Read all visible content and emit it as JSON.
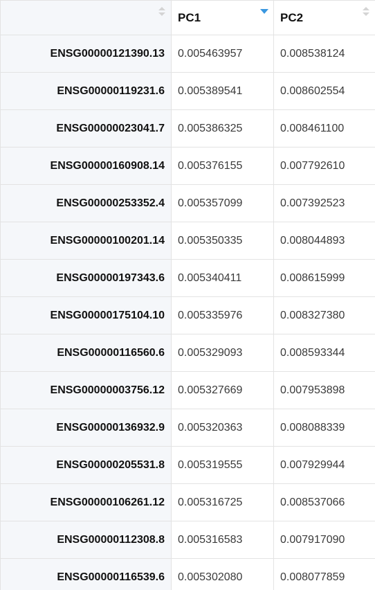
{
  "table": {
    "columns": [
      {
        "label": "",
        "sort": "none"
      },
      {
        "label": "PC1",
        "sort": "descending"
      },
      {
        "label": "PC2",
        "sort": "none"
      }
    ],
    "rows": [
      {
        "name": "ENSG00000121390.13",
        "pc1": "0.005463957",
        "pc2": "0.008538124"
      },
      {
        "name": "ENSG00000119231.6",
        "pc1": "0.005389541",
        "pc2": "0.008602554"
      },
      {
        "name": "ENSG00000023041.7",
        "pc1": "0.005386325",
        "pc2": "0.008461100"
      },
      {
        "name": "ENSG00000160908.14",
        "pc1": "0.005376155",
        "pc2": "0.007792610"
      },
      {
        "name": "ENSG00000253352.4",
        "pc1": "0.005357099",
        "pc2": "0.007392523"
      },
      {
        "name": "ENSG00000100201.14",
        "pc1": "0.005350335",
        "pc2": "0.008044893"
      },
      {
        "name": "ENSG00000197343.6",
        "pc1": "0.005340411",
        "pc2": "0.008615999"
      },
      {
        "name": "ENSG00000175104.10",
        "pc1": "0.005335976",
        "pc2": "0.008327380"
      },
      {
        "name": "ENSG00000116560.6",
        "pc1": "0.005329093",
        "pc2": "0.008593344"
      },
      {
        "name": "ENSG00000003756.12",
        "pc1": "0.005327669",
        "pc2": "0.007953898"
      },
      {
        "name": "ENSG00000136932.9",
        "pc1": "0.005320363",
        "pc2": "0.008088339"
      },
      {
        "name": "ENSG00000205531.8",
        "pc1": "0.005319555",
        "pc2": "0.007929944"
      },
      {
        "name": "ENSG00000106261.12",
        "pc1": "0.005316725",
        "pc2": "0.008537066"
      },
      {
        "name": "ENSG00000112308.8",
        "pc1": "0.005316583",
        "pc2": "0.007917090"
      },
      {
        "name": "ENSG00000116539.6",
        "pc1": "0.005302080",
        "pc2": "0.008077859"
      }
    ]
  },
  "icons": {
    "sort_active_color": "#3a97e0",
    "sort_inactive_color": "#d4d4d4"
  }
}
